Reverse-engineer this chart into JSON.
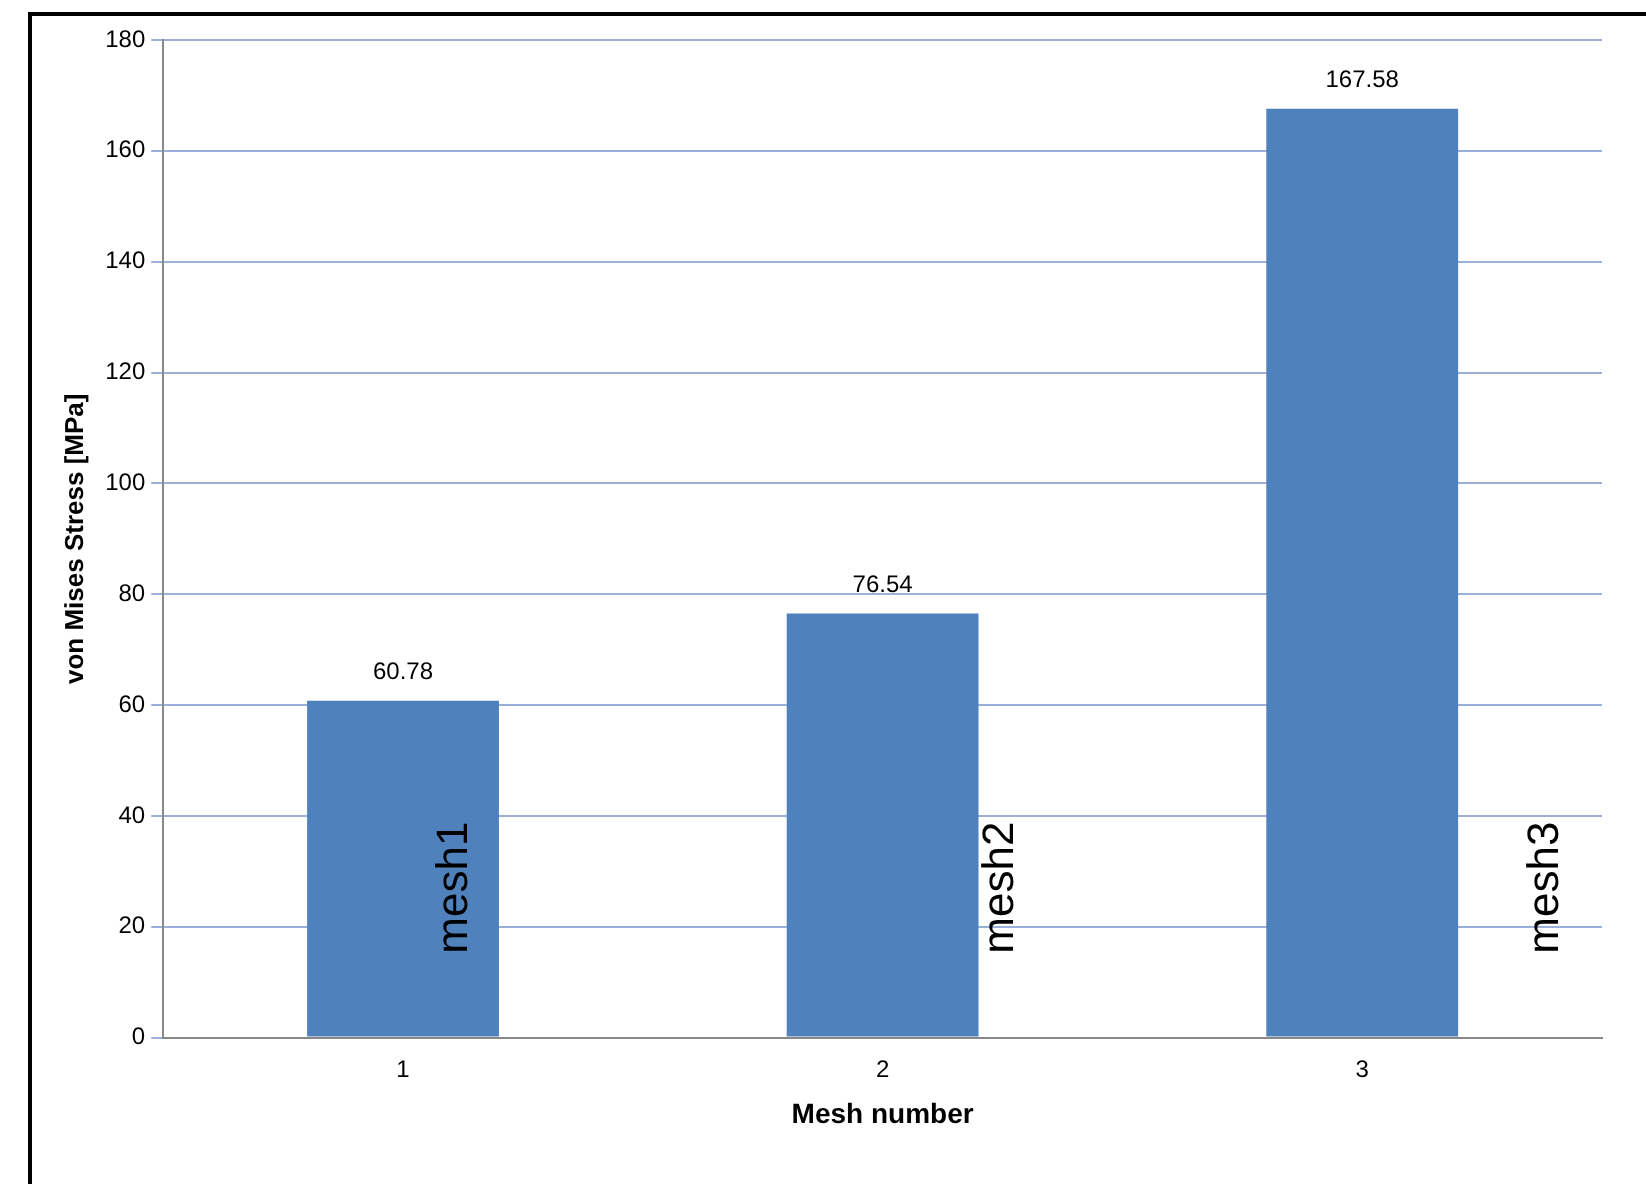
{
  "chart_data": {
    "type": "bar",
    "xlabel": "Mesh number",
    "ylabel": "von Mises Stress [MPa]",
    "categories": [
      "1",
      "2",
      "3"
    ],
    "values": [
      60.78,
      76.54,
      167.58
    ],
    "color": "#4f81bd",
    "ylim": [
      0,
      180
    ],
    "yticks": [
      0,
      20,
      40,
      60,
      80,
      100,
      120,
      140,
      160,
      180
    ],
    "grid": "y",
    "data_labels": true,
    "annotations": [
      "mesh1",
      "mesh2",
      "mesh3"
    ]
  }
}
